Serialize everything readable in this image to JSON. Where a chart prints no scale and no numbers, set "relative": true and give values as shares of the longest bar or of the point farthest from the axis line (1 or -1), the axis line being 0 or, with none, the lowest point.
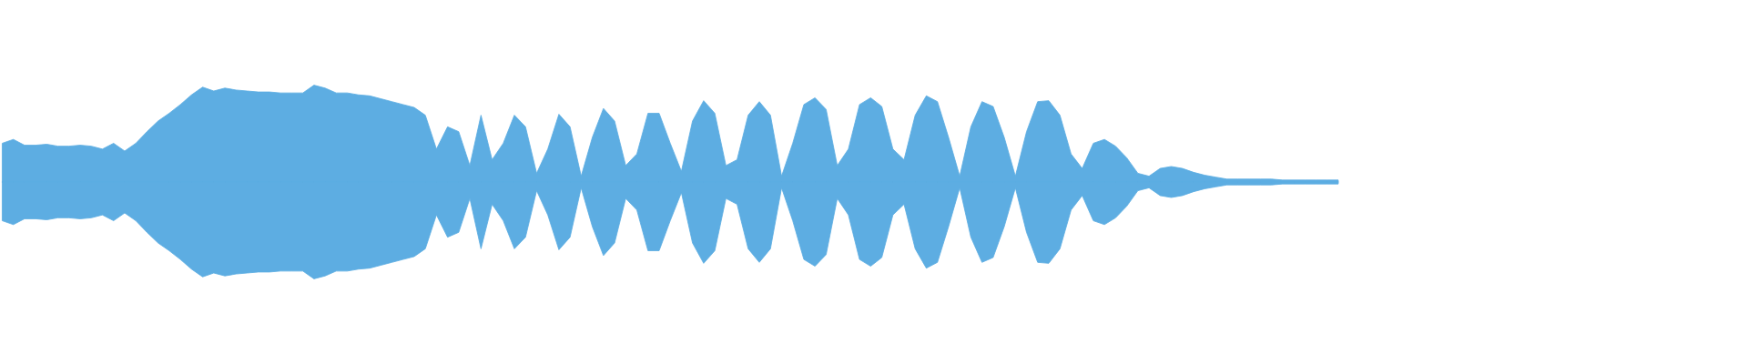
{
  "chart_data": {
    "type": "area",
    "relative": true,
    "categories": [
      null,
      null,
      null,
      null,
      null,
      null,
      null,
      null,
      null,
      null,
      null,
      null,
      null,
      null,
      null,
      null,
      null,
      null,
      null,
      null,
      null,
      null,
      null,
      null,
      null,
      null,
      null,
      null,
      null,
      null,
      null,
      null,
      null,
      null,
      null,
      null,
      null,
      null,
      null,
      null,
      null,
      null,
      null,
      null,
      null,
      null,
      null,
      null,
      null,
      null,
      null,
      null,
      null,
      null,
      null,
      null,
      null,
      null,
      null,
      null,
      null,
      null,
      null,
      null,
      null,
      null,
      null,
      null,
      null,
      null,
      null,
      null,
      null,
      null,
      null,
      null,
      null,
      null,
      null,
      null,
      null,
      null,
      null,
      null,
      null,
      null,
      null,
      null,
      null,
      null,
      null,
      null,
      null,
      null,
      null,
      null,
      null,
      null,
      null,
      null,
      null,
      null,
      null,
      null,
      null,
      null,
      null,
      null,
      null,
      null,
      null,
      null,
      null,
      null,
      null,
      null,
      null,
      null,
      null,
      null,
      null,
      null,
      null,
      null,
      null,
      null,
      null,
      null,
      null,
      null,
      null,
      null,
      null,
      null,
      null,
      null,
      null,
      null,
      null,
      null,
      null,
      null,
      null,
      null,
      null,
      null,
      null,
      null,
      null,
      null,
      null,
      null,
      null,
      null,
      null,
      null,
      null
    ],
    "series": [
      {
        "color": "#5dade2",
        "values": [
          0.4,
          0.44,
          0.38,
          0.38,
          0.39,
          0.37,
          0.37,
          0.38,
          0.37,
          0.34,
          0.4,
          0.32,
          0.4,
          0.52,
          0.63,
          0.71,
          0.8,
          0.9,
          0.98,
          0.94,
          0.97,
          0.95,
          0.94,
          0.93,
          0.93,
          0.92,
          0.92,
          0.92,
          1,
          0.97,
          0.92,
          0.92,
          0.9,
          0.89,
          0.86,
          0.83,
          0.8,
          0.77,
          0.69,
          0.34,
          0.57,
          0.52,
          0.17,
          0.69,
          0.23,
          0.4,
          0.69,
          0.57,
          0.09,
          0.34,
          0.7,
          0.57,
          0.06,
          0.46,
          0.76,
          0.63,
          0.17,
          0.29,
          0.71,
          0.71,
          0.4,
          0.11,
          0.63,
          0.84,
          0.71,
          0.17,
          0.23,
          0.69,
          0.83,
          0.69,
          0.06,
          0.4,
          0.8,
          0.87,
          0.75,
          0.17,
          0.34,
          0.8,
          0.87,
          0.78,
          0.34,
          0.23,
          0.69,
          0.89,
          0.83,
          0.46,
          0.06,
          0.57,
          0.83,
          0.78,
          0.46,
          0.06,
          0.52,
          0.83,
          0.84,
          0.69,
          0.29,
          0.14,
          0.4,
          0.44,
          0.37,
          0.25,
          0.09,
          0.06,
          0.14,
          0.16,
          0.14,
          0.1,
          0.07,
          0.05,
          0.03,
          0.03,
          0.03,
          0.03,
          0.03,
          0.02,
          0.02,
          0.02,
          0.02,
          0.02,
          0.02,
          null,
          null,
          null,
          null,
          null,
          null,
          null,
          null,
          null,
          null,
          null,
          null,
          null,
          null,
          null,
          null,
          null,
          null,
          null,
          null,
          null,
          null,
          null,
          null,
          null,
          null,
          null,
          null,
          null,
          null,
          null,
          null,
          null,
          null,
          null,
          null
        ]
      },
      {
        "color": "#5dade2",
        "values": [
          -0.4,
          -0.44,
          -0.38,
          -0.38,
          -0.39,
          -0.37,
          -0.37,
          -0.38,
          -0.37,
          -0.34,
          -0.4,
          -0.32,
          -0.4,
          -0.52,
          -0.63,
          -0.71,
          -0.8,
          -0.9,
          -0.98,
          -0.94,
          -0.97,
          -0.95,
          -0.94,
          -0.93,
          -0.93,
          -0.92,
          -0.92,
          -0.92,
          -1,
          -0.97,
          -0.92,
          -0.92,
          -0.9,
          -0.89,
          -0.86,
          -0.83,
          -0.8,
          -0.77,
          -0.69,
          -0.34,
          -0.57,
          -0.52,
          -0.17,
          -0.69,
          -0.23,
          -0.4,
          -0.69,
          -0.57,
          -0.09,
          -0.34,
          -0.7,
          -0.57,
          -0.06,
          -0.46,
          -0.76,
          -0.63,
          -0.17,
          -0.29,
          -0.71,
          -0.71,
          -0.4,
          -0.11,
          -0.63,
          -0.84,
          -0.71,
          -0.17,
          -0.23,
          -0.69,
          -0.83,
          -0.69,
          -0.06,
          -0.4,
          -0.8,
          -0.87,
          -0.75,
          -0.17,
          -0.34,
          -0.8,
          -0.87,
          -0.78,
          -0.34,
          -0.23,
          -0.69,
          -0.89,
          -0.83,
          -0.46,
          -0.06,
          -0.57,
          -0.83,
          -0.78,
          -0.46,
          -0.06,
          -0.52,
          -0.83,
          -0.84,
          -0.69,
          -0.29,
          -0.14,
          -0.4,
          -0.44,
          -0.37,
          -0.25,
          -0.09,
          -0.06,
          -0.14,
          -0.16,
          -0.14,
          -0.1,
          -0.07,
          -0.05,
          -0.03,
          -0.03,
          -0.03,
          -0.03,
          -0.03,
          -0.02,
          -0.02,
          -0.02,
          -0.02,
          -0.02,
          -0.02,
          null,
          null,
          null,
          null,
          null,
          null,
          null,
          null,
          null,
          null,
          null,
          null,
          null,
          null,
          null,
          null,
          null,
          null,
          null,
          null,
          null,
          null,
          null,
          null,
          null,
          null,
          null,
          null,
          null,
          null,
          null,
          null,
          null,
          null,
          null,
          null
        ]
      }
    ]
  }
}
